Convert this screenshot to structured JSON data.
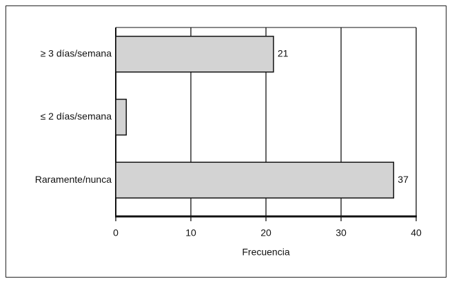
{
  "chart_data": {
    "type": "bar",
    "orientation": "horizontal",
    "categories": [
      "≥ 3 días/semana",
      "≤ 2 días/semana",
      "Raramente/nunca"
    ],
    "values": [
      21,
      1.4,
      37
    ],
    "value_labels": [
      "21",
      null,
      "37"
    ],
    "color": "#d3d3d3",
    "xlabel": "Frecuencia",
    "xlim": [
      0,
      40
    ],
    "xticks": [
      0,
      10,
      20,
      30,
      40
    ],
    "grid": true
  }
}
